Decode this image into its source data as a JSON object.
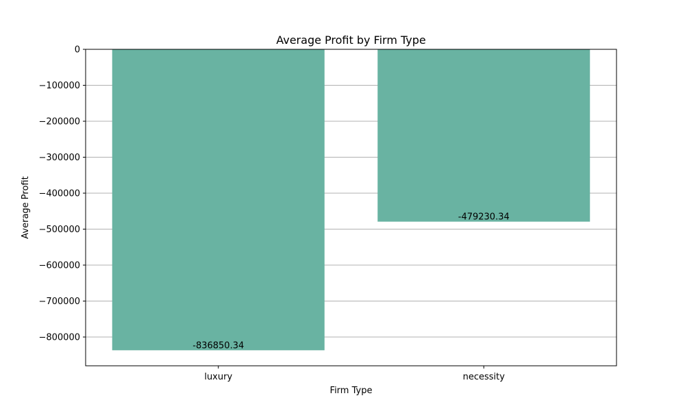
{
  "chart_data": {
    "type": "bar",
    "title": "Average Profit by Firm Type",
    "xlabel": "Firm Type",
    "ylabel": "Average Profit",
    "categories": [
      "luxury",
      "necessity"
    ],
    "values": [
      -836850.34,
      -479230.34
    ],
    "data_labels": [
      "-836850.34",
      "-479230.34"
    ],
    "ylim": [
      -880000,
      0
    ],
    "yticks": [
      0,
      -100000,
      -200000,
      -300000,
      -400000,
      -500000,
      -600000,
      -700000,
      -800000
    ],
    "ytick_labels": [
      "0",
      "−100000",
      "−200000",
      "−300000",
      "−400000",
      "−500000",
      "−600000",
      "−700000",
      "−800000"
    ],
    "grid": "y",
    "bar_color": "#69b3a2"
  }
}
